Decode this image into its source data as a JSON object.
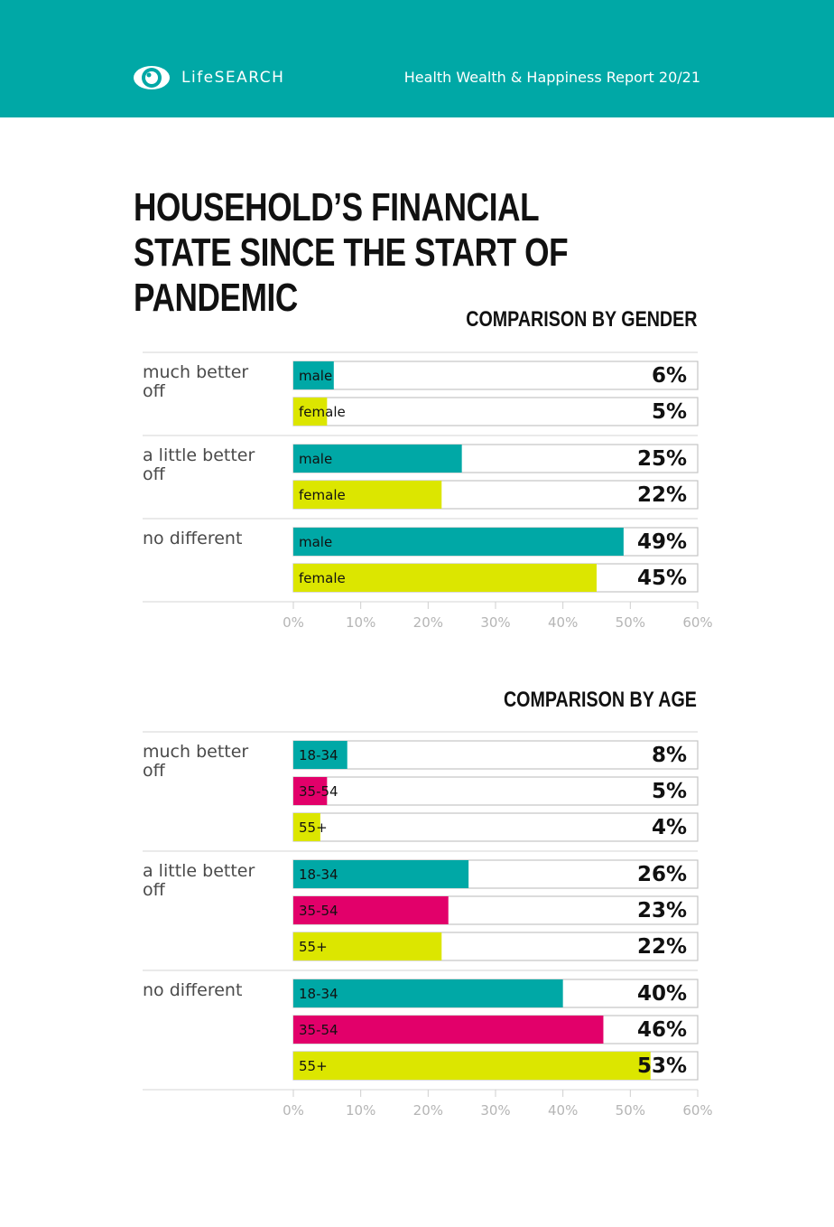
{
  "header": {
    "brand": "LifeSEARCH",
    "report": "Health Wealth & Happiness Report 20/21",
    "background": "#00a8a6"
  },
  "page": {
    "title": "HOUSEHOLD’S FINANCIAL STATE SINCE THE START OF PANDEMIC"
  },
  "colors": {
    "teal": "#00a8a6",
    "yellow": "#dce600",
    "magenta": "#e2006a"
  },
  "chart_data": [
    {
      "type": "bar",
      "orientation": "horizontal",
      "title": "COMPARISON BY GENDER",
      "xlim": [
        0,
        60
      ],
      "ticks": [
        "0%",
        "10%",
        "20%",
        "30%",
        "40%",
        "50%",
        "60%"
      ],
      "grid": false,
      "categories": [
        "much better off",
        "a little better off",
        "no different"
      ],
      "series": [
        {
          "name": "male",
          "color": "#00a8a6",
          "values": [
            6,
            25,
            49
          ],
          "labels": [
            "6%",
            "25%",
            "49%"
          ]
        },
        {
          "name": "female",
          "color": "#dce600",
          "values": [
            5,
            22,
            45
          ],
          "labels": [
            "5%",
            "22%",
            "45%"
          ]
        }
      ]
    },
    {
      "type": "bar",
      "orientation": "horizontal",
      "title": "COMPARISON BY AGE",
      "xlim": [
        0,
        60
      ],
      "ticks": [
        "0%",
        "10%",
        "20%",
        "30%",
        "40%",
        "50%",
        "60%"
      ],
      "grid": false,
      "categories": [
        "much better off",
        "a little better off",
        "no different"
      ],
      "series": [
        {
          "name": "18-34",
          "color": "#00a8a6",
          "values": [
            8,
            26,
            40
          ],
          "labels": [
            "8%",
            "26%",
            "40%"
          ]
        },
        {
          "name": "35-54",
          "color": "#e2006a",
          "values": [
            5,
            23,
            46
          ],
          "labels": [
            "5%",
            "23%",
            "46%"
          ]
        },
        {
          "name": "55+",
          "color": "#dce600",
          "values": [
            4,
            22,
            53
          ],
          "labels": [
            "4%",
            "22%",
            "53%"
          ]
        }
      ]
    }
  ]
}
